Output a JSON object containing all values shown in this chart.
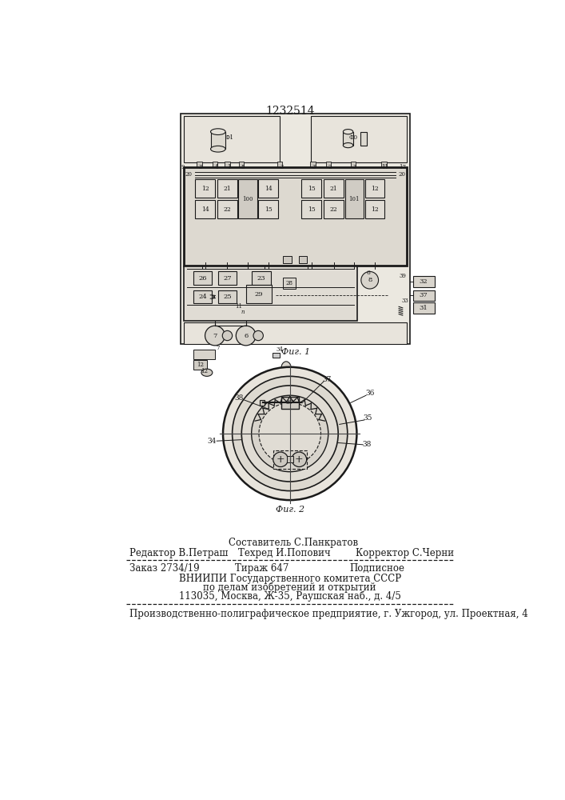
{
  "title_number": "1232514",
  "bg_color": "#f5f4f0",
  "page_bg": "#f5f4f0",
  "fig1_caption": "Фиг. 1",
  "fig2_caption": "Фиг. 2",
  "footer_line0_center": "Составитель С.Панкратов",
  "footer_line1_left": "Редактор В.Петраш",
  "footer_line1_center": "Техред И.Попович",
  "footer_line1_right": "Корректор С.Черни",
  "footer_line2_left": "Заказ 2734/19",
  "footer_line2_center": "Тираж 647",
  "footer_line2_right": "Подписное",
  "footer_line3": "ВНИИПИ Государственного комитета СССР",
  "footer_line4": "по делам изобретений и открытий",
  "footer_line5": "113035, Москва, Ж-35, Раушская наб., д. 4/5",
  "footer_last": "Производственно-полиграфическое предприятие, г. Ужгород, ул. Проектная, 4"
}
